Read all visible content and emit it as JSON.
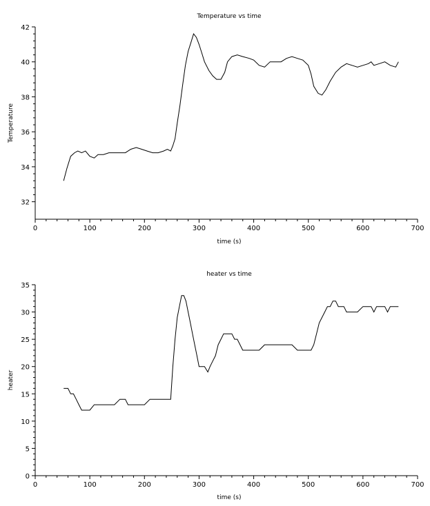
{
  "chart_data": [
    {
      "type": "line",
      "title": "Temperature vs time",
      "xlabel": "time (s)",
      "ylabel": "Temperature",
      "xlim": [
        0,
        700
      ],
      "ylim": [
        31,
        42
      ],
      "xticks": [
        0,
        100,
        200,
        300,
        400,
        500,
        600,
        700
      ],
      "yticks": [
        32,
        34,
        36,
        38,
        40,
        42
      ],
      "grid": false,
      "series": [
        {
          "x": [
            52,
            58,
            65,
            72,
            78,
            85,
            92,
            100,
            108,
            115,
            125,
            135,
            145,
            155,
            165,
            175,
            185,
            195,
            205,
            215,
            225,
            235,
            242,
            248,
            252,
            256,
            260,
            265,
            270,
            275,
            280,
            285,
            290,
            295,
            300,
            305,
            310,
            318,
            325,
            332,
            340,
            347,
            352,
            360,
            370,
            380,
            392,
            400,
            410,
            420,
            430,
            440,
            450,
            460,
            470,
            480,
            490,
            500,
            505,
            510,
            518,
            525,
            532,
            540,
            550,
            560,
            570,
            580,
            590,
            600,
            610,
            615,
            620,
            630,
            640,
            650,
            660,
            665
          ],
          "y": [
            33.2,
            33.9,
            34.6,
            34.8,
            34.9,
            34.8,
            34.9,
            34.6,
            34.5,
            34.7,
            34.7,
            34.8,
            34.8,
            34.8,
            34.8,
            35.0,
            35.1,
            35.0,
            34.9,
            34.8,
            34.8,
            34.9,
            35.0,
            34.9,
            35.2,
            35.6,
            36.5,
            37.5,
            38.7,
            39.8,
            40.6,
            41.1,
            41.6,
            41.4,
            41.0,
            40.5,
            40.0,
            39.5,
            39.2,
            39.0,
            39.0,
            39.4,
            40.0,
            40.3,
            40.4,
            40.3,
            40.2,
            40.1,
            39.8,
            39.7,
            40.0,
            40.0,
            40.0,
            40.2,
            40.3,
            40.2,
            40.1,
            39.8,
            39.3,
            38.6,
            38.2,
            38.1,
            38.4,
            38.9,
            39.4,
            39.7,
            39.9,
            39.8,
            39.7,
            39.8,
            39.9,
            40.0,
            39.8,
            39.9,
            40.0,
            39.8,
            39.7,
            40.0
          ]
        }
      ]
    },
    {
      "type": "line",
      "title": "heater vs time",
      "xlabel": "time (s)",
      "ylabel": "heater",
      "xlim": [
        0,
        700
      ],
      "ylim": [
        0,
        35
      ],
      "xticks": [
        0,
        100,
        200,
        300,
        400,
        500,
        600,
        700
      ],
      "yticks": [
        0,
        5,
        10,
        15,
        20,
        25,
        30,
        35
      ],
      "grid": false,
      "series": [
        {
          "x": [
            52,
            60,
            65,
            70,
            75,
            80,
            85,
            90,
            95,
            100,
            108,
            115,
            125,
            135,
            145,
            155,
            160,
            165,
            170,
            175,
            180,
            190,
            200,
            210,
            220,
            230,
            240,
            248,
            252,
            256,
            260,
            264,
            268,
            272,
            276,
            280,
            284,
            288,
            292,
            296,
            300,
            305,
            310,
            316,
            320,
            325,
            330,
            335,
            340,
            345,
            350,
            355,
            360,
            365,
            370,
            375,
            380,
            390,
            400,
            410,
            420,
            430,
            440,
            450,
            460,
            470,
            480,
            490,
            500,
            505,
            510,
            515,
            520,
            525,
            530,
            535,
            540,
            545,
            550,
            555,
            560,
            565,
            570,
            580,
            590,
            600,
            610,
            615,
            620,
            625,
            630,
            640,
            645,
            650,
            655,
            660,
            665
          ],
          "y": [
            16,
            16,
            15,
            15,
            14,
            13,
            12,
            12,
            12,
            12,
            13,
            13,
            13,
            13,
            13,
            14,
            14,
            14,
            13,
            13,
            13,
            13,
            13,
            14,
            14,
            14,
            14,
            14,
            20,
            25,
            29,
            31,
            33,
            33,
            32,
            30,
            28,
            26,
            24,
            22,
            20,
            20,
            20,
            19,
            20,
            21,
            22,
            24,
            25,
            26,
            26,
            26,
            26,
            25,
            25,
            24,
            23,
            23,
            23,
            23,
            24,
            24,
            24,
            24,
            24,
            24,
            23,
            23,
            23,
            23,
            24,
            26,
            28,
            29,
            30,
            31,
            31,
            32,
            32,
            31,
            31,
            31,
            30,
            30,
            30,
            31,
            31,
            31,
            30,
            31,
            31,
            31,
            30,
            31,
            31,
            31,
            31
          ]
        }
      ]
    }
  ]
}
